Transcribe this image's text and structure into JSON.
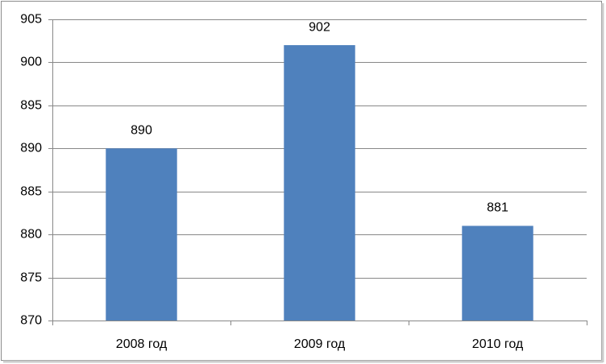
{
  "chart_data": {
    "type": "bar",
    "categories": [
      "2008 год",
      "2009 год",
      "2010 год"
    ],
    "values": [
      890,
      902,
      881
    ],
    "color": "#4f81bd",
    "ylim": [
      870,
      905
    ],
    "yticks": [
      870,
      875,
      880,
      885,
      890,
      895,
      900,
      905
    ],
    "grid": true,
    "data_labels": true
  }
}
